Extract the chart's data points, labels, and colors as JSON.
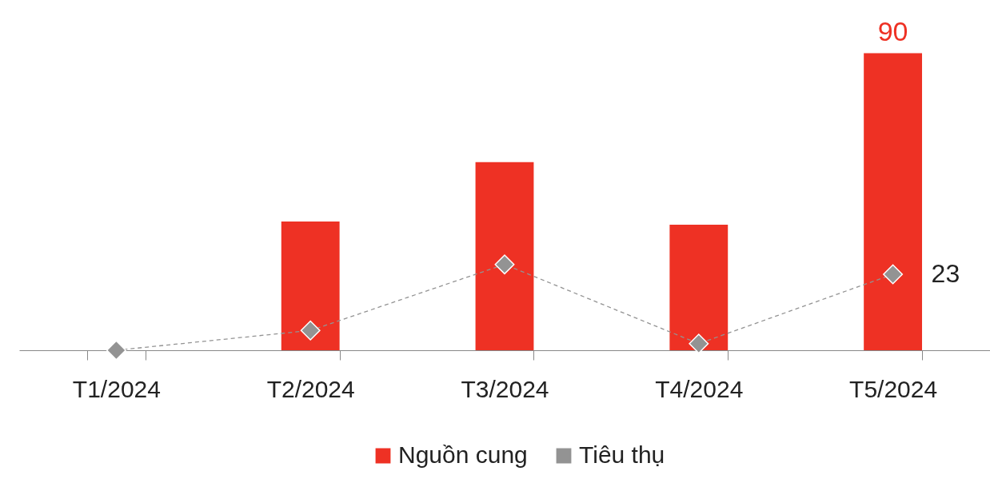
{
  "chart_data": {
    "type": "bar",
    "categories": [
      "T1/2024",
      "T2/2024",
      "T3/2024",
      "T4/2024",
      "T5/2024"
    ],
    "series": [
      {
        "name": "Nguồn cung",
        "color": "#ee3124",
        "values": [
          0,
          39,
          57,
          38,
          90
        ],
        "value_labels": [
          null,
          null,
          null,
          null,
          "90"
        ]
      },
      {
        "name": "Tiêu thụ",
        "type": "line",
        "color": "#939393",
        "values": [
          0,
          6,
          26,
          2,
          23
        ],
        "value_labels": [
          null,
          null,
          null,
          null,
          "23"
        ],
        "marker": "diamond",
        "line_style": "dashed"
      }
    ],
    "legend": "bottom",
    "grid": false
  }
}
